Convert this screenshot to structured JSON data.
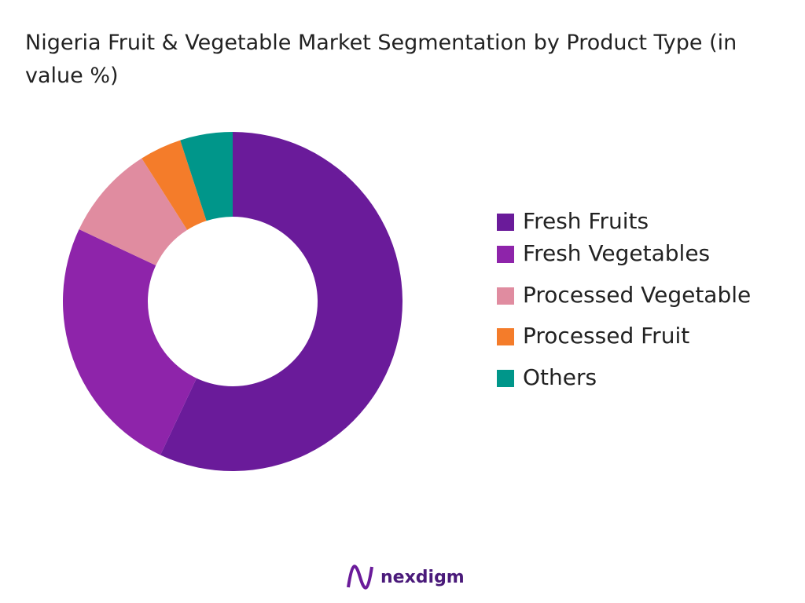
{
  "chart_data": {
    "type": "donut",
    "title": "Nigeria Fruit & Vegetable Market Segmentation by Product Type (in value %)",
    "categories": [
      "Fresh Fruits",
      "Fresh Vegetables",
      "Processed Vegetable",
      "Processed Fruit",
      "Others"
    ],
    "values": [
      57,
      25,
      9,
      4,
      5
    ],
    "colors": [
      "#6a1b9a",
      "#8e24aa",
      "#e08ca0",
      "#f47c2a",
      "#00968a"
    ],
    "legend": "right"
  },
  "brand": "nexdigm"
}
